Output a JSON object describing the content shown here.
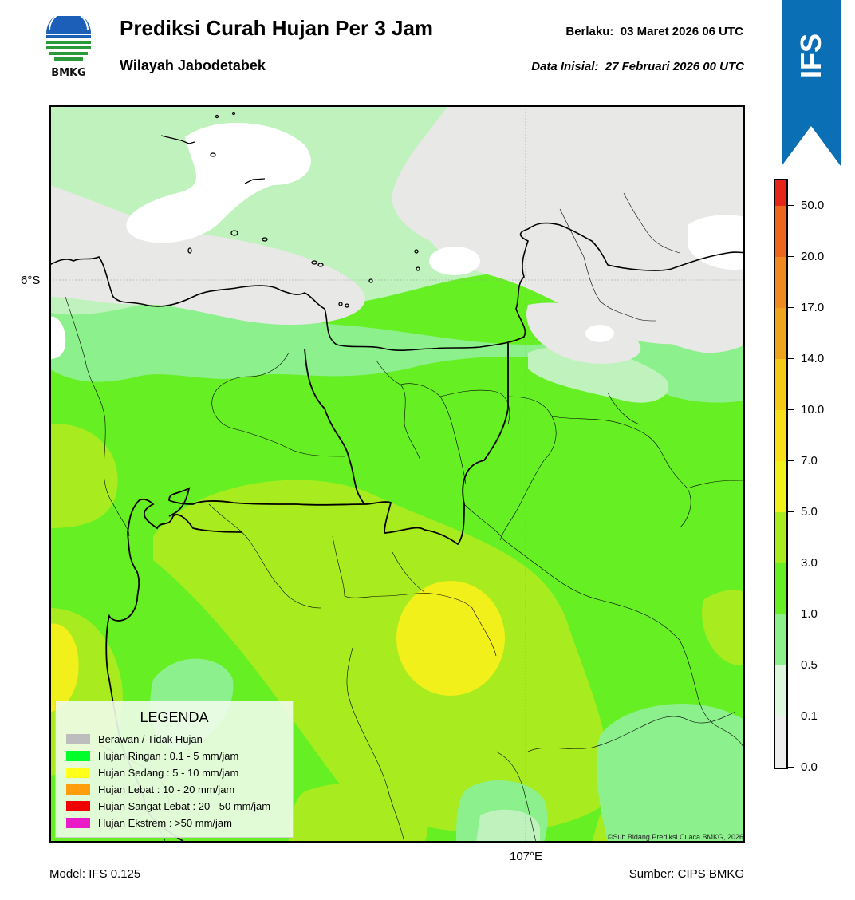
{
  "logo": {
    "text": "BMKG"
  },
  "header": {
    "title": "Prediksi Curah Hujan Per 3 Jam",
    "region": "Wilayah Jabodetabek",
    "valid_label": "Berlaku:",
    "valid_time": "03 Maret 2026 06 UTC",
    "initial_label": "Data Inisial:",
    "initial_time": "27 Februari 2026 00 UTC"
  },
  "badge": {
    "text": "IFS",
    "color": "#0a6fb4"
  },
  "map": {
    "lat_tick": "6°S",
    "lon_tick": "107°E",
    "copyright": "©Sub Bidang Prediksi Cuaca BMKG, 2026"
  },
  "legend": {
    "title": "LEGENDA",
    "items": [
      {
        "label": "Berawan / Tidak Hujan",
        "color": "#bdbdbd"
      },
      {
        "label": "Hujan Ringan : 0.1 - 5 mm/jam",
        "color": "#00ff2a"
      },
      {
        "label": "Hujan Sedang : 5 - 10 mm/jam",
        "color": "#ffff19"
      },
      {
        "label": "Hujan Lebat : 10 - 20 mm/jam",
        "color": "#ff9e0c"
      },
      {
        "label": "Hujan Sangat Lebat : 20 - 50 mm/jam",
        "color": "#f00000"
      },
      {
        "label": "Hujan Ekstrem : >50 mm/jam",
        "color": "#e81bc7"
      }
    ]
  },
  "colorbar": {
    "labels": [
      "0.0",
      "0.1",
      "0.5",
      "1.0",
      "3.0",
      "5.0",
      "7.0",
      "10.0",
      "14.0",
      "17.0",
      "20.0",
      "50.0"
    ],
    "colors": [
      "#eeeeee",
      "#dff6de",
      "#8cf08c",
      "#66ef23",
      "#a8ec1f",
      "#f2f01a",
      "#f7e01a",
      "#f5c918",
      "#efa41d",
      "#ef8a20",
      "#ec661e",
      "#e6251a",
      "#e21dc6"
    ]
  },
  "footer": {
    "model": "Model: IFS 0.125",
    "source": "Sumber: CIPS BMKG"
  }
}
